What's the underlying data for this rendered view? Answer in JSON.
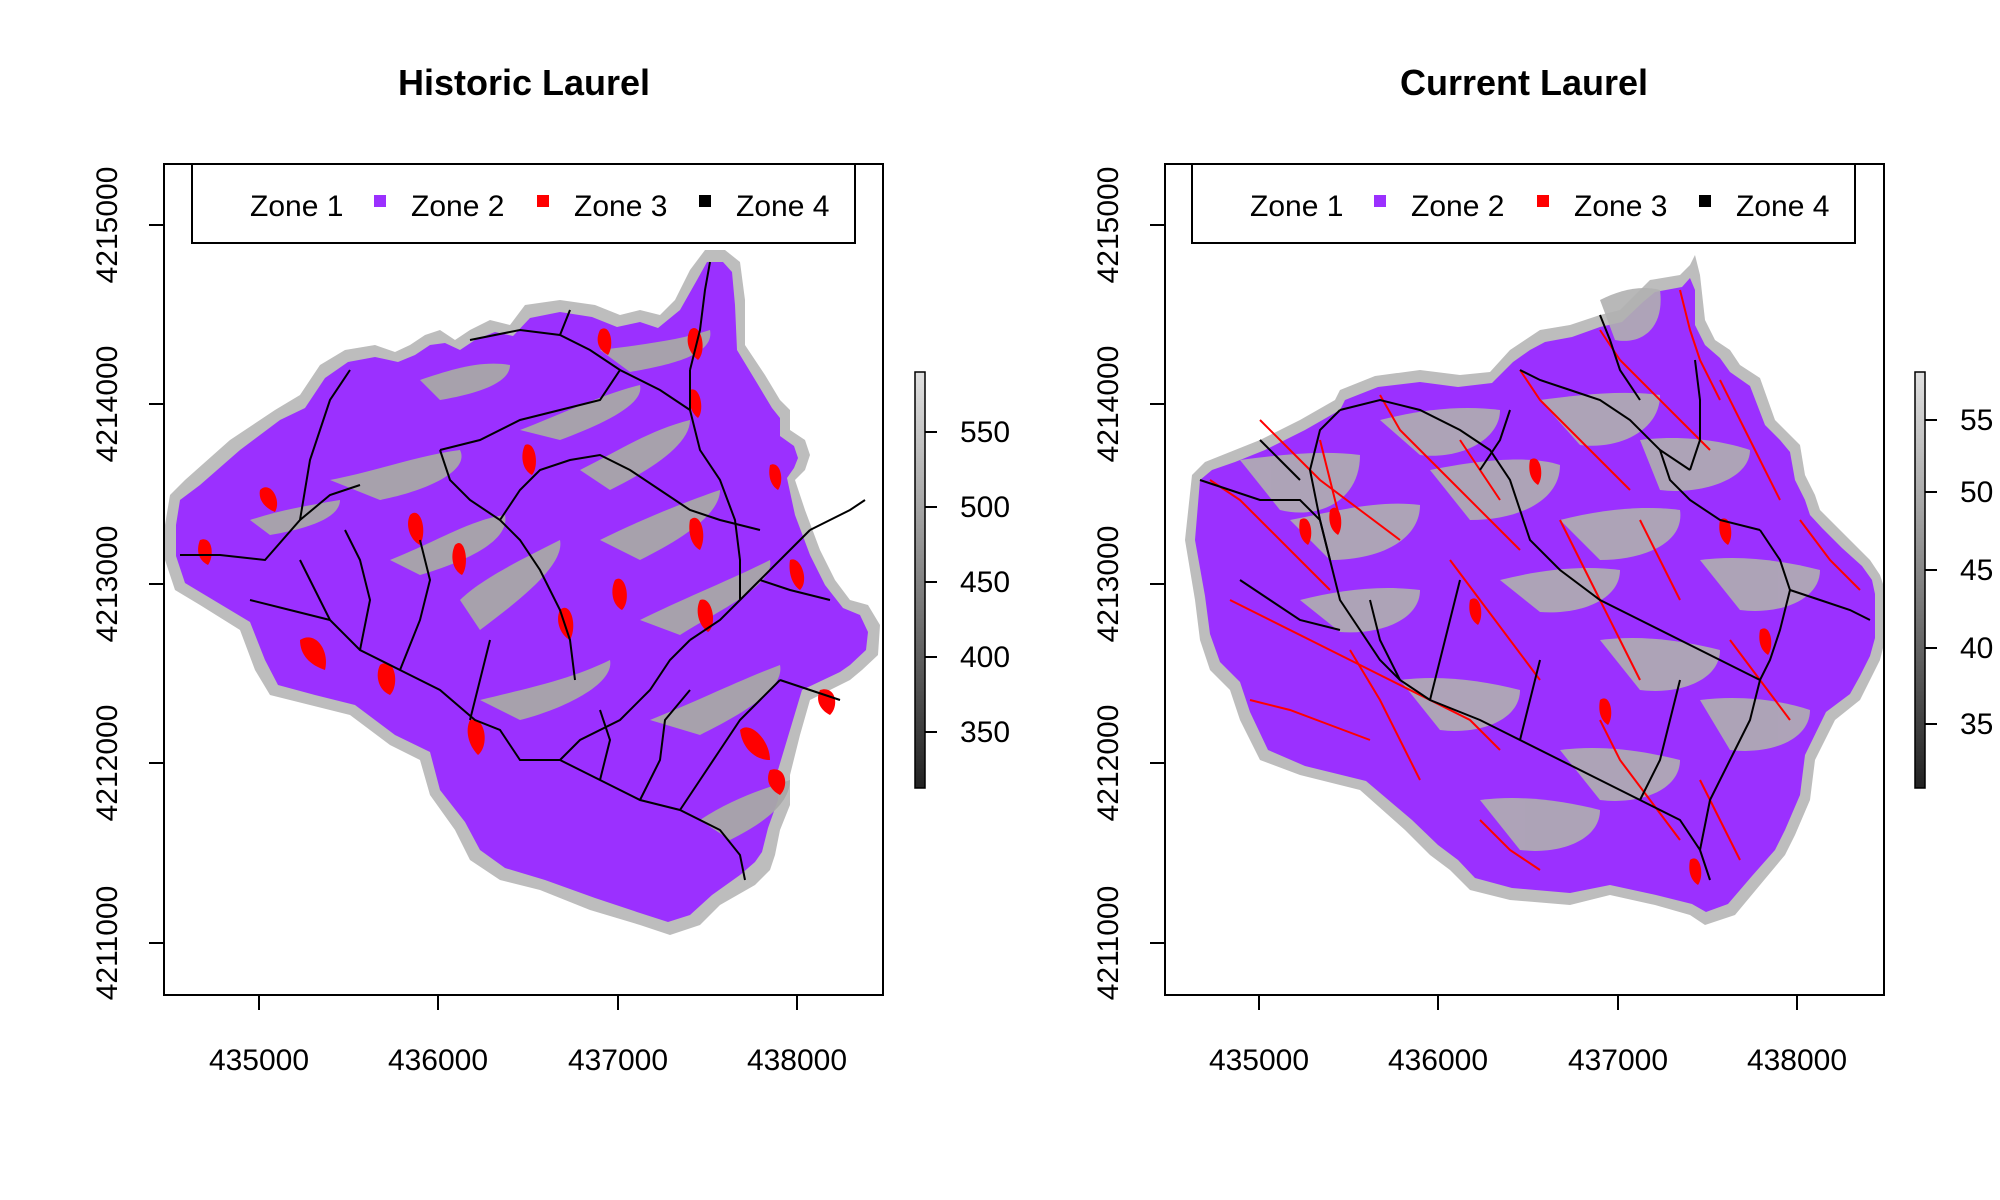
{
  "panels": [
    {
      "id": "historic",
      "title": "Historic Laurel",
      "legend": [
        {
          "label": "Zone 1",
          "color": "#ffffff"
        },
        {
          "label": "Zone 2",
          "color": "#9b30ff"
        },
        {
          "label": "Zone 3",
          "color": "#ff0000"
        },
        {
          "label": "Zone 4",
          "color": "#000000"
        }
      ],
      "x_ticks": [
        "435000",
        "436000",
        "437000",
        "438000"
      ],
      "y_ticks": [
        "4211000",
        "4212000",
        "4213000",
        "4214000",
        "4215000"
      ],
      "colorbar_ticks": [
        "350",
        "400",
        "450",
        "500",
        "550"
      ]
    },
    {
      "id": "current",
      "title": "Current Laurel",
      "legend": [
        {
          "label": "Zone 1",
          "color": "#ffffff"
        },
        {
          "label": "Zone 2",
          "color": "#9b30ff"
        },
        {
          "label": "Zone 3",
          "color": "#ff0000"
        },
        {
          "label": "Zone 4",
          "color": "#000000"
        }
      ],
      "x_ticks": [
        "435000",
        "436000",
        "437000",
        "438000"
      ],
      "y_ticks": [
        "4211000",
        "4212000",
        "4213000",
        "4214000",
        "4215000"
      ],
      "colorbar_ticks": [
        "35",
        "40",
        "45",
        "50",
        "55"
      ]
    }
  ],
  "colors": {
    "zone2_purple": "#9b30ff",
    "zone3_red": "#ff0000",
    "zone4_black": "#000000",
    "elevation_low": "#2a2a2a",
    "elevation_high": "#d8d8d8"
  }
}
